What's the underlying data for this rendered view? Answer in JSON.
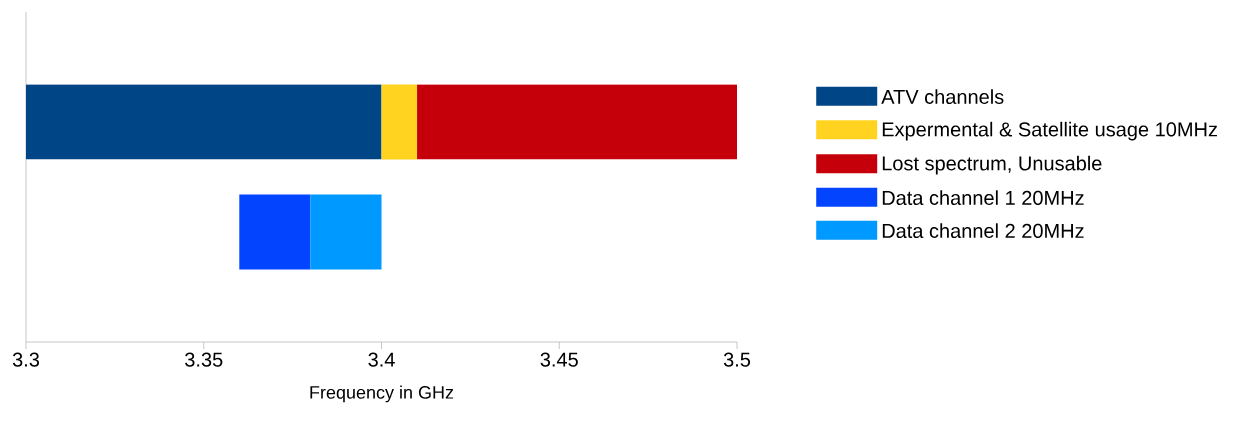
{
  "chart_data": {
    "type": "bar",
    "orientation": "horizontal",
    "categories": [
      null,
      null
    ],
    "series": [
      {
        "name": "ATV channels",
        "color": "#004586",
        "base": [
          3.3,
          null
        ],
        "values": [
          0.1,
          null
        ]
      },
      {
        "name": "Expermental & Satellite usage 10MHz",
        "color": "#ffd320",
        "base": [
          3.4,
          null
        ],
        "values": [
          0.01,
          null
        ]
      },
      {
        "name": "Lost spectrum, Unusable",
        "color": "#c5000b",
        "base": [
          3.41,
          null
        ],
        "values": [
          0.09,
          null
        ]
      },
      {
        "name": "Data channel 1 20MHz",
        "color": "#0344ff",
        "base": [
          null,
          3.36
        ],
        "values": [
          null,
          0.02
        ]
      },
      {
        "name": "Data channel 2 20MHz",
        "color": "#0099ff",
        "base": [
          null,
          3.38
        ],
        "values": [
          null,
          0.02
        ]
      }
    ],
    "xlim": [
      3.3,
      3.5
    ],
    "xticks": [
      3.3,
      3.35,
      3.4,
      3.45,
      3.5
    ],
    "xlabel": "Frequency in GHz",
    "tick_labels": "x",
    "legend": "right",
    "grid": false
  }
}
